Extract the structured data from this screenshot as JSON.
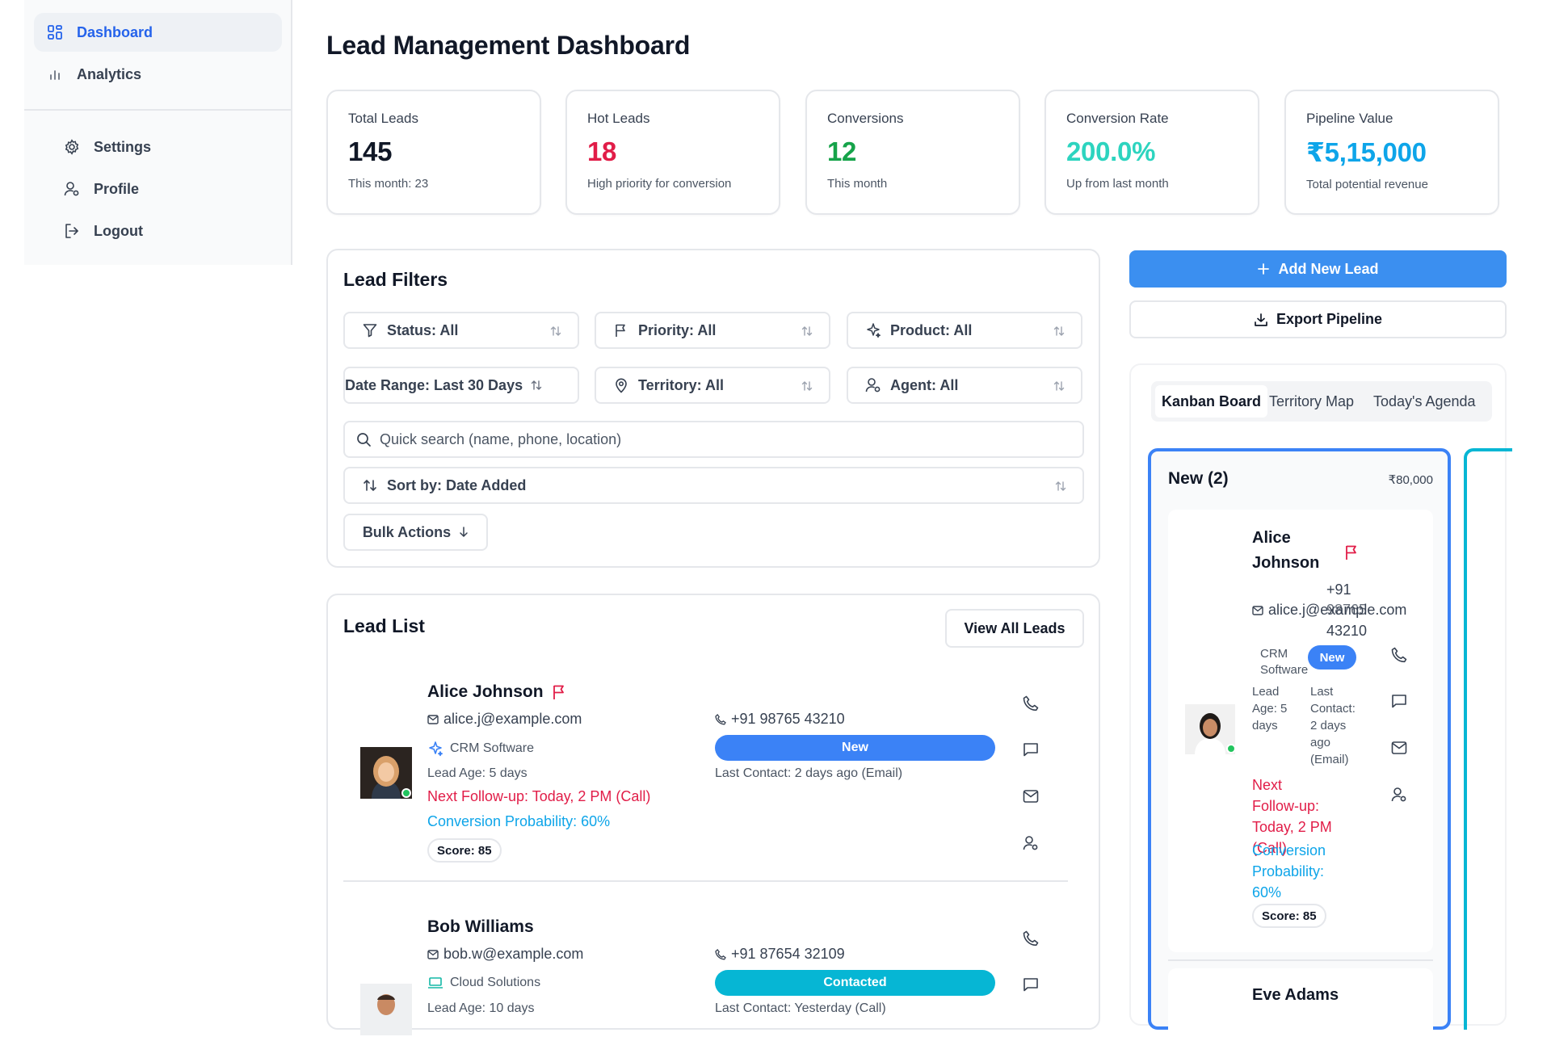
{
  "sidebar": {
    "items": [
      {
        "label": "Dashboard",
        "icon": "grid-icon",
        "active": true
      },
      {
        "label": "Analytics",
        "icon": "bar-chart-icon",
        "active": false
      }
    ],
    "sub_items": [
      {
        "label": "Settings",
        "icon": "gear-icon"
      },
      {
        "label": "Profile",
        "icon": "user-icon"
      },
      {
        "label": "Logout",
        "icon": "logout-icon"
      }
    ]
  },
  "page": {
    "title": "Lead Management Dashboard"
  },
  "stats": [
    {
      "label": "Total Leads",
      "value": "145",
      "sub": "This month: 23",
      "color": "#111827"
    },
    {
      "label": "Hot Leads",
      "value": "18",
      "sub": "High priority for conversion",
      "color": "#e11d48"
    },
    {
      "label": "Conversions",
      "value": "12",
      "sub": "This month",
      "color": "#16a34a"
    },
    {
      "label": "Conversion Rate",
      "value": "200.0%",
      "sub": "Up from last month",
      "color": "#2dd4bf"
    },
    {
      "label": "Pipeline Value",
      "value": "₹5,15,000",
      "sub": "Total potential revenue",
      "color": "#0ea5e9"
    }
  ],
  "filters": {
    "title": "Lead Filters",
    "status": "Status: All",
    "priority": "Priority: All",
    "product": "Product: All",
    "date_range": "Date Range: Last 30 Days",
    "territory": "Territory: All",
    "agent": "Agent: All",
    "search_placeholder": "Quick search (name, phone, location)",
    "sort": "Sort by: Date Added",
    "bulk_actions": "Bulk Actions"
  },
  "lead_list": {
    "title": "Lead List",
    "view_all": "View All Leads",
    "leads": [
      {
        "name": "Alice Johnson",
        "email": "alice.j@example.com",
        "phone": "+91 98765 43210",
        "product": "CRM Software",
        "status": "New",
        "status_color": "#3b82f6",
        "lead_age": "Lead Age: 5 days",
        "last_contact": "Last Contact: 2 days ago (Email)",
        "follow_up": "Next Follow-up: Today, 2 PM (Call)",
        "probability": "Conversion Probability: 60%",
        "score": "Score: 85",
        "flagged": true
      },
      {
        "name": "Bob Williams",
        "email": "bob.w@example.com",
        "phone": "+91 87654 32109",
        "product": "Cloud Solutions",
        "status": "Contacted",
        "status_color": "#06b6d4",
        "lead_age": "Lead Age: 10 days",
        "last_contact": "Last Contact: Yesterday (Call)",
        "flagged": false
      }
    ]
  },
  "actions": {
    "add_lead": "Add New Lead",
    "export": "Export Pipeline"
  },
  "tabs": [
    {
      "label": "Kanban Board",
      "active": true
    },
    {
      "label": "Territory Map",
      "active": false
    },
    {
      "label": "Today's Agenda",
      "active": false
    }
  ],
  "kanban": {
    "column_title": "New (2)",
    "column_value": "₹80,000",
    "card": {
      "name_first": "Alice",
      "name_last": "Johnson",
      "phone_line1": "+91",
      "email": "alice.j@example.com",
      "phone_line2": "98765",
      "phone_line3": "43210",
      "product_line1": "CRM",
      "product_line2": "Software",
      "status": "New",
      "lead_age_1": "Lead",
      "lead_age_2": "Age: 5",
      "lead_age_3": "days",
      "last_contact_1": "Last",
      "last_contact_2": "Contact:",
      "last_contact_3": "2 days",
      "last_contact_4": "ago",
      "last_contact_5": "(Email)",
      "follow_1": "Next",
      "follow_2": "Follow-up:",
      "follow_3": "Today, 2 PM",
      "follow_4": "(Call)",
      "prob_1": "Conversion",
      "prob_2": "Probability:",
      "prob_3": "60%",
      "score": "Score: 85"
    },
    "next_card_name": "Eve Adams"
  }
}
